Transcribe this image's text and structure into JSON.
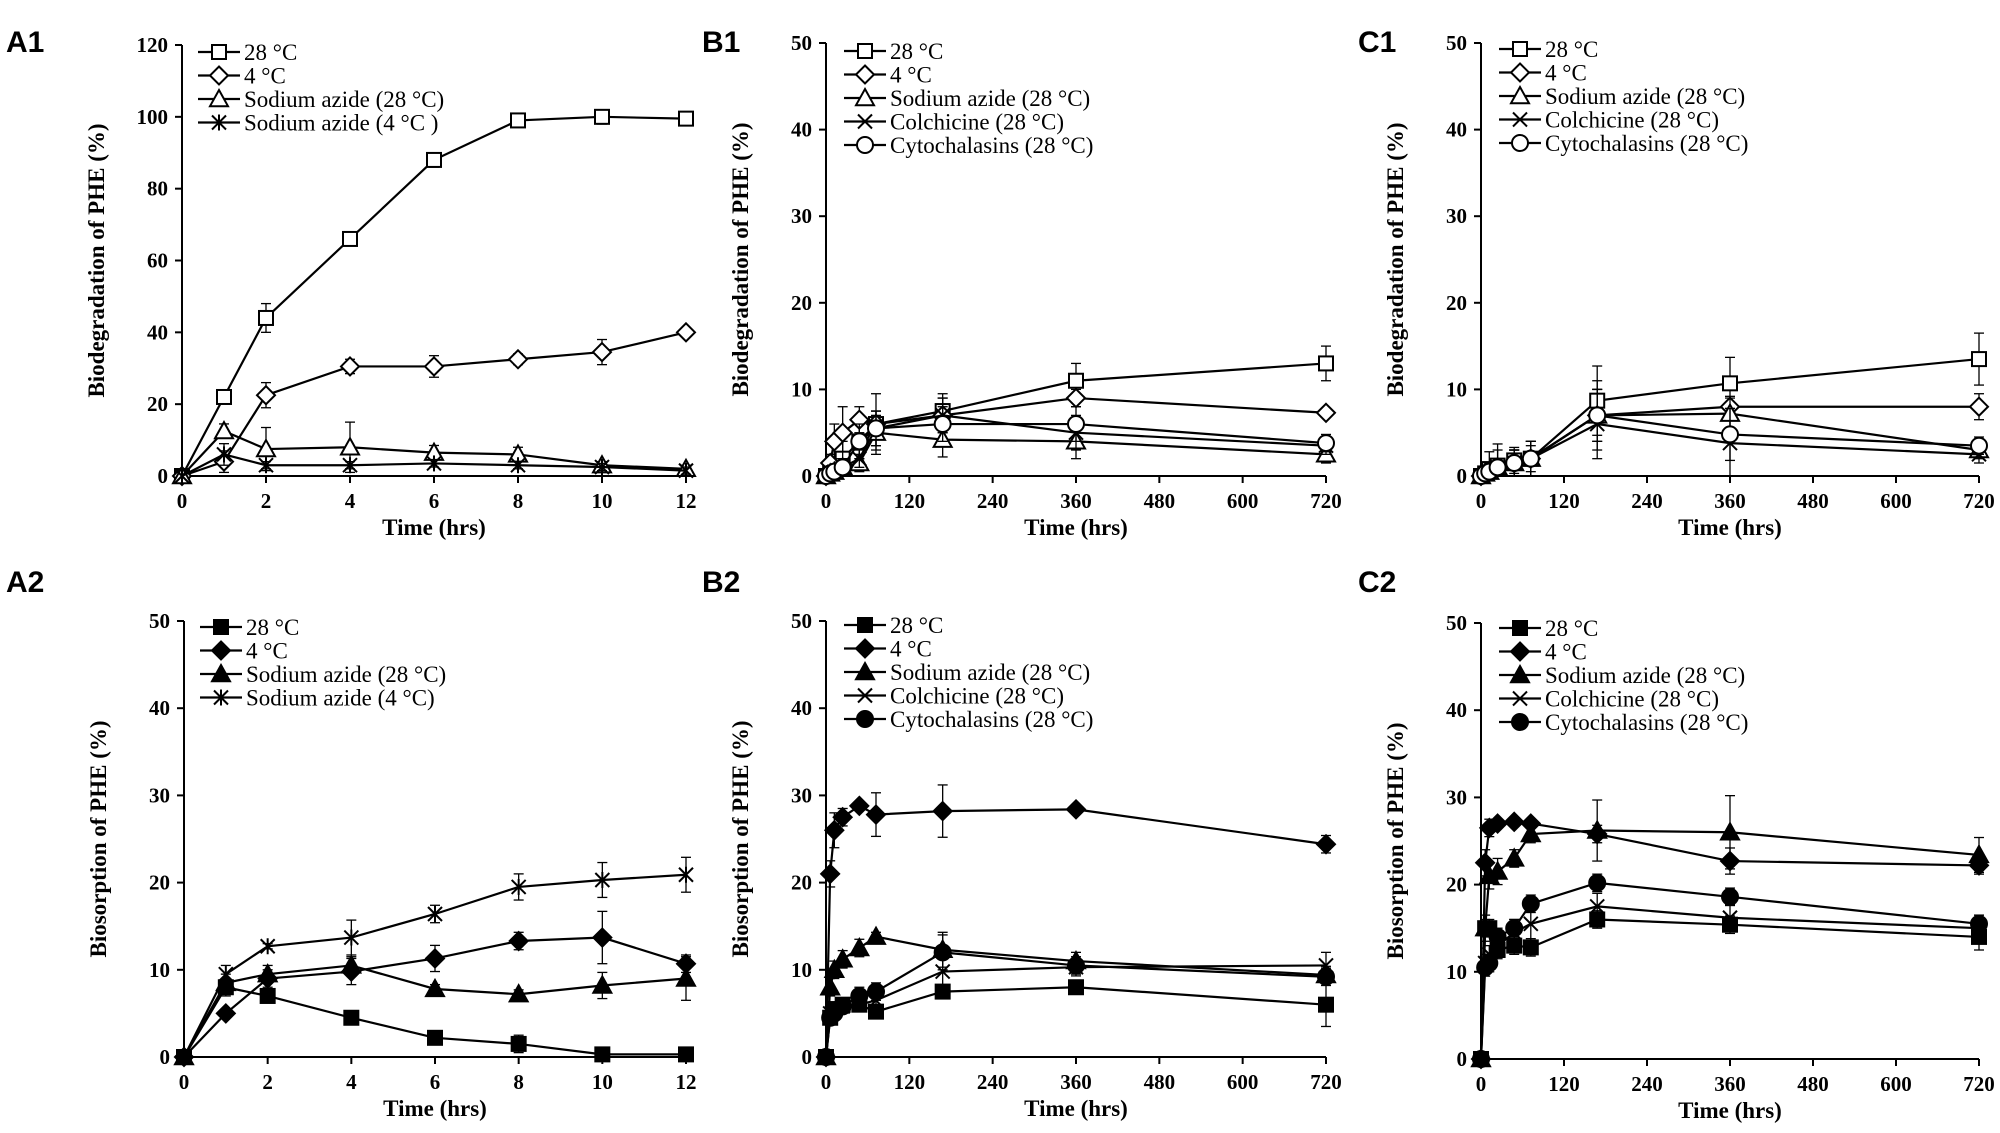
{
  "chart_data": [
    {
      "id": "A1",
      "type": "line",
      "panel_label": "A1",
      "xlabel": "Time (hrs)",
      "ylabel": "Biodegradation of PHE (%)",
      "xlim": [
        0,
        12
      ],
      "ylim": [
        0,
        120
      ],
      "xticks": [
        0,
        2,
        4,
        6,
        8,
        10,
        12
      ],
      "yticks": [
        0,
        20,
        40,
        60,
        80,
        100,
        120
      ],
      "series": [
        {
          "name": "28 °C",
          "marker": "square-open",
          "x": [
            0,
            1,
            2,
            4,
            6,
            8,
            10,
            12
          ],
          "y": [
            0,
            22,
            44,
            66,
            88,
            99,
            100,
            99.5
          ],
          "err": [
            0,
            1,
            4,
            1,
            2,
            1,
            2,
            1
          ]
        },
        {
          "name": "4 °C",
          "marker": "diamond-open",
          "x": [
            0,
            1,
            2,
            4,
            6,
            8,
            10,
            12
          ],
          "y": [
            0,
            4,
            22.5,
            30.5,
            30.5,
            32.5,
            34.5,
            40
          ],
          "err": [
            0,
            3,
            3.5,
            2,
            3,
            1.5,
            3.5,
            1
          ]
        },
        {
          "name": "Sodium azide (28 °C)",
          "marker": "triangle-open",
          "x": [
            0,
            1,
            2,
            4,
            6,
            8,
            10,
            12
          ],
          "y": [
            0,
            12.5,
            7.5,
            8,
            6.5,
            6,
            3,
            2
          ],
          "err": [
            0,
            2,
            6,
            7,
            2,
            2,
            1,
            1
          ]
        },
        {
          "name": "Sodium azide (4 °C )",
          "marker": "star",
          "x": [
            0,
            1,
            2,
            4,
            6,
            8,
            10,
            12
          ],
          "y": [
            0,
            6,
            3,
            3,
            3.5,
            3,
            2.5,
            1.5
          ],
          "err": [
            0,
            3,
            1,
            1,
            1,
            1,
            1,
            1
          ]
        }
      ]
    },
    {
      "id": "B1",
      "type": "line",
      "panel_label": "B1",
      "xlabel": "Time (hrs)",
      "ylabel": "Biodegradation of PHE (%)",
      "xlim": [
        0,
        720
      ],
      "ylim": [
        0,
        50
      ],
      "xticks": [
        0,
        120,
        240,
        360,
        480,
        600,
        720
      ],
      "yticks": [
        0,
        10,
        20,
        30,
        40,
        50
      ],
      "series": [
        {
          "name": "28 °C",
          "marker": "square-open",
          "x": [
            0,
            6,
            12,
            24,
            48,
            72,
            168,
            360,
            720
          ],
          "y": [
            0,
            0.5,
            1,
            2,
            4,
            6,
            7.5,
            11,
            13
          ],
          "err": [
            0,
            0.5,
            1,
            2,
            2,
            3.5,
            2,
            2,
            2
          ]
        },
        {
          "name": "4 °C",
          "marker": "diamond-open",
          "x": [
            0,
            6,
            12,
            24,
            48,
            72,
            168,
            360,
            720
          ],
          "y": [
            0,
            1.5,
            4,
            5,
            6.5,
            6,
            7,
            9,
            7.3
          ],
          "err": [
            0,
            1,
            2,
            3,
            1.5,
            1.5,
            2,
            1,
            0.5
          ]
        },
        {
          "name": "Sodium azide (28 °C)",
          "marker": "triangle-open",
          "x": [
            0,
            6,
            12,
            24,
            48,
            72,
            168,
            360,
            720
          ],
          "y": [
            0,
            0.3,
            0.5,
            1,
            1.5,
            5,
            4.2,
            4,
            2.5
          ],
          "err": [
            0,
            0.3,
            0.5,
            1,
            1,
            2,
            2,
            2,
            1
          ]
        },
        {
          "name": "Colchicine (28 °C)",
          "marker": "x",
          "x": [
            0,
            6,
            12,
            24,
            48,
            72,
            168,
            360,
            720
          ],
          "y": [
            0,
            0.3,
            0.5,
            1,
            2,
            5.5,
            7,
            5,
            3.5
          ],
          "err": [
            0,
            0.3,
            0.5,
            1,
            1,
            2,
            2,
            2,
            1
          ]
        },
        {
          "name": "Cytochalasins (28 °C)",
          "marker": "circle-open",
          "x": [
            0,
            6,
            12,
            24,
            48,
            72,
            168,
            360,
            720
          ],
          "y": [
            0,
            0.3,
            0.5,
            1,
            4,
            5.5,
            6,
            6,
            3.8
          ],
          "err": [
            0,
            0.3,
            0.5,
            1,
            2,
            2,
            2,
            2,
            1
          ]
        }
      ]
    },
    {
      "id": "C1",
      "type": "line",
      "panel_label": "C1",
      "xlabel": "Time (hrs)",
      "ylabel": "Biodegradation of PHE (%)",
      "xlim": [
        0,
        720
      ],
      "ylim": [
        0,
        50
      ],
      "xticks": [
        0,
        120,
        240,
        360,
        480,
        600,
        720
      ],
      "yticks": [
        0,
        10,
        20,
        30,
        40,
        50
      ],
      "series": [
        {
          "name": "28 °C",
          "marker": "square-open",
          "x": [
            0,
            6,
            12,
            24,
            48,
            72,
            168,
            360,
            720
          ],
          "y": [
            0,
            0.3,
            0.8,
            1.2,
            1.8,
            2,
            8.7,
            10.7,
            13.5
          ],
          "err": [
            0,
            0.3,
            2,
            2.5,
            1.5,
            1.5,
            4,
            3,
            3
          ]
        },
        {
          "name": "4 °C",
          "marker": "diamond-open",
          "x": [
            0,
            6,
            12,
            24,
            48,
            72,
            168,
            360,
            720
          ],
          "y": [
            0,
            0.3,
            0.5,
            1,
            1.5,
            2,
            7,
            8,
            8
          ],
          "err": [
            0,
            0.3,
            1,
            2,
            1.5,
            2,
            3,
            1,
            1.5
          ]
        },
        {
          "name": "Sodium azide (28 °C)",
          "marker": "triangle-open",
          "x": [
            0,
            6,
            12,
            24,
            48,
            72,
            168,
            360,
            720
          ],
          "y": [
            0,
            0.3,
            0.5,
            1,
            1.5,
            2,
            7,
            7.2,
            3
          ],
          "err": [
            0,
            0.3,
            1,
            1,
            1.5,
            2,
            4,
            2,
            1
          ]
        },
        {
          "name": "Colchicine (28 °C)",
          "marker": "x",
          "x": [
            0,
            6,
            12,
            24,
            48,
            72,
            168,
            360,
            720
          ],
          "y": [
            0,
            0.3,
            0.5,
            1,
            1.5,
            2,
            6,
            3.8,
            2.5
          ],
          "err": [
            0,
            0.3,
            1,
            1,
            1.5,
            2,
            4,
            4,
            1
          ]
        },
        {
          "name": "Cytochalasins (28 °C)",
          "marker": "circle-open",
          "x": [
            0,
            6,
            12,
            24,
            48,
            72,
            168,
            360,
            720
          ],
          "y": [
            0,
            0.3,
            0.5,
            1,
            1.5,
            2,
            7,
            4.8,
            3.5
          ],
          "err": [
            0,
            0.3,
            1,
            1,
            1.5,
            2,
            3,
            3,
            1
          ]
        }
      ]
    },
    {
      "id": "A2",
      "type": "line",
      "panel_label": "A2",
      "xlabel": "Time (hrs)",
      "ylabel": "Biosorption of PHE (%)",
      "xlim": [
        0,
        12
      ],
      "ylim": [
        0,
        50
      ],
      "xticks": [
        0,
        2,
        4,
        6,
        8,
        10,
        12
      ],
      "yticks": [
        0,
        10,
        20,
        30,
        40,
        50
      ],
      "series": [
        {
          "name": "28 °C",
          "marker": "square-filled",
          "x": [
            0,
            1,
            2,
            4,
            6,
            8,
            10,
            12
          ],
          "y": [
            0,
            8,
            7,
            4.5,
            2.2,
            1.5,
            0.3,
            0.3
          ],
          "err": [
            0,
            1,
            0.5,
            0.5,
            0.5,
            1,
            0.3,
            0.3
          ]
        },
        {
          "name": "4 °C",
          "marker": "diamond-filled",
          "x": [
            0,
            1,
            2,
            4,
            6,
            8,
            10,
            12
          ],
          "y": [
            0,
            5,
            9,
            9.8,
            11.3,
            13.3,
            13.7,
            10.7
          ],
          "err": [
            0,
            0.5,
            1,
            1.5,
            1.5,
            1,
            3,
            1
          ]
        },
        {
          "name": "Sodium azide (28 °C)",
          "marker": "triangle-filled",
          "x": [
            0,
            1,
            2,
            4,
            6,
            8,
            10,
            12
          ],
          "y": [
            0,
            8.5,
            9.5,
            10.5,
            7.8,
            7.2,
            8.2,
            9
          ],
          "err": [
            0,
            1,
            1,
            1,
            0.5,
            0.5,
            1.5,
            2.5
          ]
        },
        {
          "name": "Sodium azide (4 °C)",
          "marker": "star",
          "x": [
            0,
            1,
            2,
            4,
            6,
            8,
            10,
            12
          ],
          "y": [
            0,
            9.5,
            12.7,
            13.7,
            16.4,
            19.5,
            20.3,
            20.9
          ],
          "err": [
            0,
            1,
            0.3,
            2,
            1,
            1.5,
            2,
            2
          ]
        }
      ]
    },
    {
      "id": "B2",
      "type": "line",
      "panel_label": "B2",
      "xlabel": "Time (hrs)",
      "ylabel": "Biosorption of PHE (%)",
      "xlim": [
        0,
        720
      ],
      "ylim": [
        0,
        50
      ],
      "xticks": [
        0,
        120,
        240,
        360,
        480,
        600,
        720
      ],
      "yticks": [
        0,
        10,
        20,
        30,
        40,
        50
      ],
      "series": [
        {
          "name": "28 °C",
          "marker": "square-filled",
          "x": [
            0,
            6,
            12,
            24,
            48,
            72,
            168,
            360,
            720
          ],
          "y": [
            0,
            4.5,
            5.5,
            6,
            6,
            5.2,
            7.5,
            8,
            6
          ],
          "err": [
            0,
            0.5,
            0.5,
            0.5,
            0.5,
            0.5,
            0.5,
            0.5,
            2.5
          ]
        },
        {
          "name": "4 °C",
          "marker": "diamond-filled",
          "x": [
            0,
            6,
            12,
            24,
            48,
            72,
            168,
            360,
            720
          ],
          "y": [
            0,
            21,
            26,
            27.5,
            28.8,
            27.8,
            28.2,
            28.4,
            24.4
          ],
          "err": [
            0,
            1.5,
            2,
            1,
            0.5,
            2.5,
            3,
            0.5,
            1
          ]
        },
        {
          "name": "Sodium azide (28 °C)",
          "marker": "triangle-filled",
          "x": [
            0,
            6,
            12,
            24,
            48,
            72,
            168,
            360,
            720
          ],
          "y": [
            0,
            8,
            10,
            11.2,
            12.5,
            13.8,
            12.3,
            11,
            9.4
          ],
          "err": [
            0,
            1,
            1,
            1,
            1,
            0.5,
            2,
            1,
            1
          ]
        },
        {
          "name": "Colchicine (28 °C)",
          "marker": "x",
          "x": [
            0,
            6,
            12,
            24,
            48,
            72,
            168,
            360,
            720
          ],
          "y": [
            0,
            5,
            5.5,
            5.8,
            6,
            6.5,
            9.8,
            10.3,
            10.5
          ],
          "err": [
            0,
            0.5,
            0.5,
            0.5,
            0.5,
            1,
            1.5,
            1,
            1.5
          ]
        },
        {
          "name": "Cytochalasins (28 °C)",
          "marker": "circle-filled",
          "x": [
            0,
            6,
            12,
            24,
            48,
            72,
            168,
            360,
            720
          ],
          "y": [
            0,
            4.5,
            5,
            5.8,
            7,
            7.5,
            12,
            10.5,
            9.2
          ],
          "err": [
            0,
            0.5,
            0.5,
            0.5,
            1,
            1,
            2,
            1,
            1
          ]
        }
      ]
    },
    {
      "id": "C2",
      "type": "line",
      "panel_label": "C2",
      "xlabel": "Time (hrs)",
      "ylabel": "Biosorption of PHE (%)",
      "xlim": [
        0,
        720
      ],
      "ylim": [
        0,
        50
      ],
      "xticks": [
        0,
        120,
        240,
        360,
        480,
        600,
        720
      ],
      "yticks": [
        0,
        10,
        20,
        30,
        40,
        50
      ],
      "series": [
        {
          "name": "28 °C",
          "marker": "square-filled",
          "x": [
            0,
            6,
            12,
            24,
            48,
            72,
            168,
            360,
            720
          ],
          "y": [
            0,
            15,
            15,
            12.5,
            13,
            12.8,
            16,
            15.4,
            14
          ],
          "err": [
            0,
            1,
            1,
            1,
            1,
            1,
            1,
            1,
            1.5
          ]
        },
        {
          "name": "4 °C",
          "marker": "diamond-filled",
          "x": [
            0,
            6,
            12,
            24,
            48,
            72,
            168,
            360,
            720
          ],
          "y": [
            0,
            22.5,
            26.5,
            27,
            27.2,
            27,
            25.8,
            22.7,
            22.2
          ],
          "err": [
            0,
            1.5,
            1,
            0.5,
            0.5,
            0.5,
            1,
            1.5,
            1
          ]
        },
        {
          "name": "Sodium azide (28 °C)",
          "marker": "triangle-filled",
          "x": [
            0,
            6,
            12,
            24,
            48,
            72,
            168,
            360,
            720
          ],
          "y": [
            0,
            15,
            21,
            21.5,
            23,
            25.8,
            26.2,
            26,
            23.4
          ],
          "err": [
            0,
            1.5,
            1.5,
            1.5,
            1,
            1,
            3.5,
            4.2,
            2
          ]
        },
        {
          "name": "Colchicine (28 °C)",
          "marker": "x",
          "x": [
            0,
            6,
            12,
            24,
            48,
            72,
            168,
            360,
            720
          ],
          "y": [
            0,
            11,
            12,
            13,
            14.5,
            15.5,
            17.5,
            16.2,
            15
          ],
          "err": [
            0,
            1,
            1,
            1,
            1.5,
            3,
            1.5,
            1.5,
            1.5
          ]
        },
        {
          "name": "Cytochalasins (28 °C)",
          "marker": "circle-filled",
          "x": [
            0,
            6,
            12,
            24,
            48,
            72,
            168,
            360,
            720
          ],
          "y": [
            0,
            10.5,
            11,
            14,
            15,
            17.8,
            20.2,
            18.6,
            15.5
          ],
          "err": [
            0,
            1,
            1,
            1,
            1,
            1,
            1,
            1,
            1
          ]
        }
      ]
    }
  ]
}
